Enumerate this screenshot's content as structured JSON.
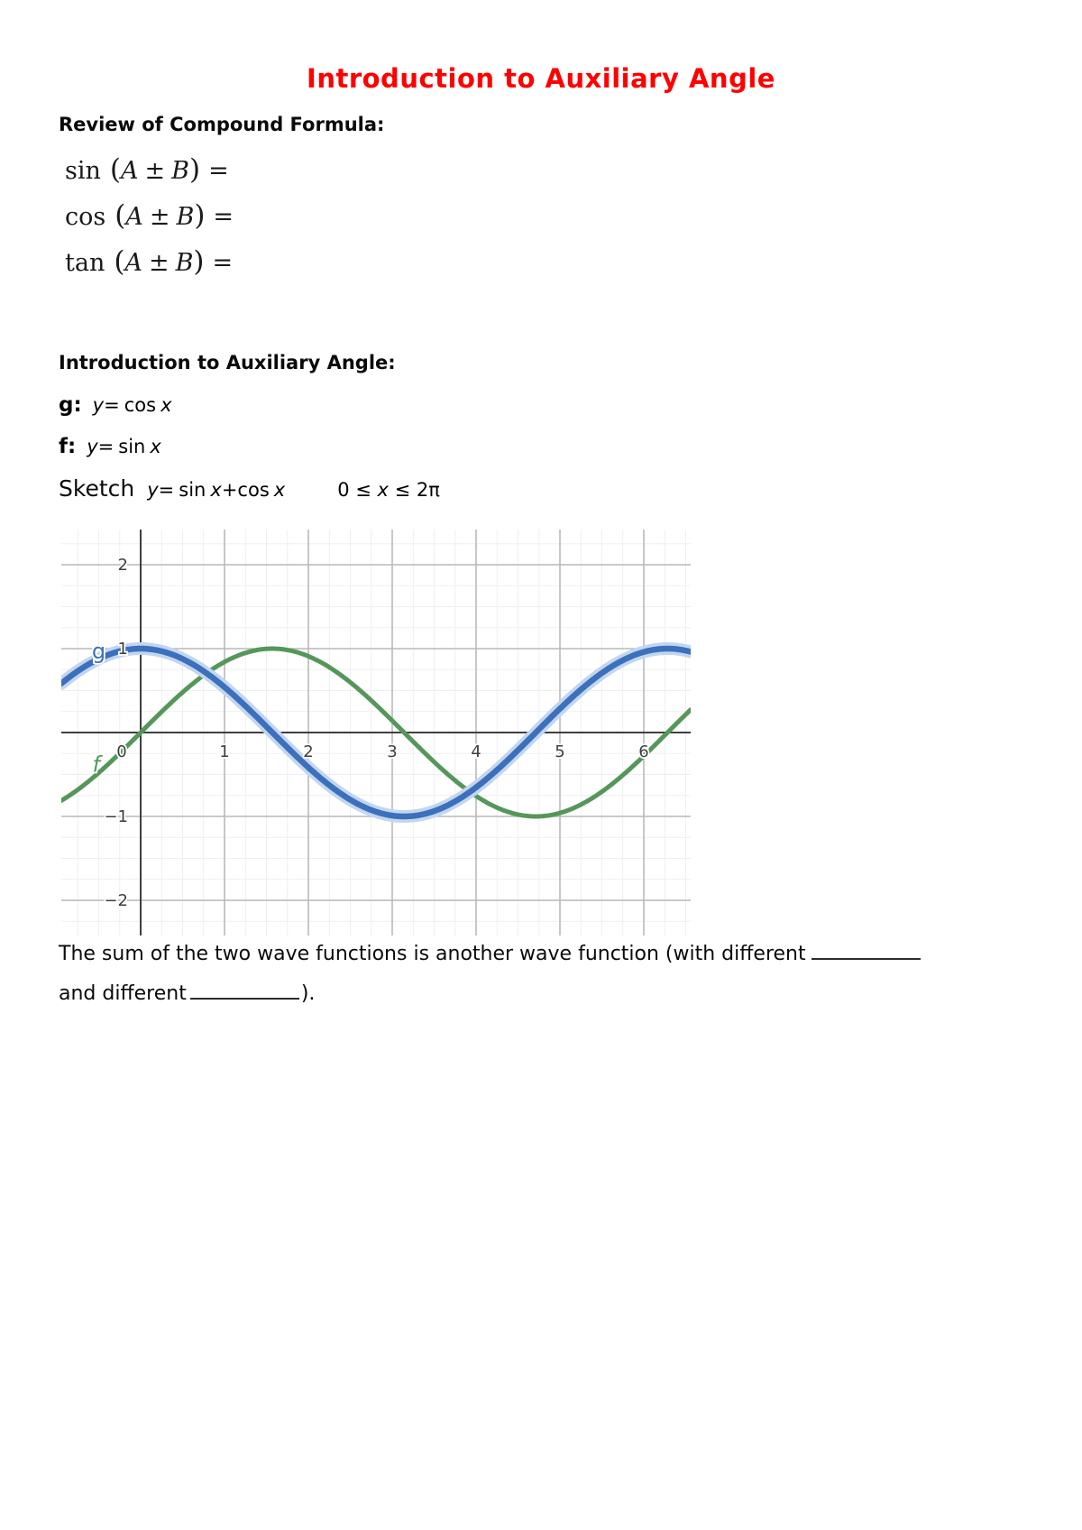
{
  "page": {
    "title": "Introduction to Auxiliary Angle",
    "title_color": "#ff0000"
  },
  "review": {
    "heading": "Review of Compound Formula:",
    "formulas": [
      {
        "fn": "sin",
        "open": "(",
        "a": "A",
        "pm": "±",
        "b": "B",
        "close": ")",
        "eq": "="
      },
      {
        "fn": "cos",
        "open": "(",
        "a": "A",
        "pm": "±",
        "b": "B",
        "close": ")",
        "eq": "="
      },
      {
        "fn": "tan",
        "open": "(",
        "a": "A",
        "pm": "±",
        "b": "B",
        "close": ")",
        "eq": "="
      }
    ]
  },
  "intro": {
    "heading": "Introduction to Auxiliary Angle:",
    "definitions": [
      {
        "label": "g:",
        "vy": "y",
        "eq": "=",
        "fn": "cos",
        "vx": "x"
      },
      {
        "label": "f:",
        "vy": "y",
        "eq": "=",
        "fn": "sin",
        "vx": "x"
      }
    ],
    "sketch": {
      "word": "Sketch",
      "vy": "y",
      "eq": "=",
      "fn1": "sin",
      "vx1": "x",
      "plus": "+",
      "fn2": "cos",
      "vx2": "x",
      "domain_start": "0 ≤",
      "domain_var": "x",
      "domain_end": "≤ 2π"
    }
  },
  "bottom": {
    "line1": "The sum of the two wave functions is another wave function (with different",
    "line2_start": "and different",
    "line2_end": ")."
  },
  "chart_data": {
    "type": "line",
    "title": "",
    "xlabel": "",
    "ylabel": "",
    "description": "Graphs of f: y = sin x (green) and g: y = cos x (blue, highlighted) over the visible window; student is to sketch y = sin x + cos x for 0 ≤ x ≤ 2π",
    "x_axis": {
      "visible_min": -0.95,
      "visible_max": 6.56,
      "ticks": [
        {
          "value": 0,
          "label": "0"
        },
        {
          "value": 1,
          "label": "1"
        },
        {
          "value": 2,
          "label": "2"
        },
        {
          "value": 3,
          "label": "3"
        },
        {
          "value": 4,
          "label": "4"
        },
        {
          "value": 5,
          "label": "5"
        },
        {
          "value": 6,
          "label": "6"
        }
      ]
    },
    "y_axis": {
      "visible_min": -2.42,
      "visible_max": 2.42,
      "ticks": [
        {
          "value": 2,
          "label": "2"
        },
        {
          "value": 1,
          "label": "1"
        },
        {
          "value": -1,
          "label": "−1"
        },
        {
          "value": -2,
          "label": "−2"
        }
      ]
    },
    "grid": {
      "on": true,
      "minor_step": 0.25,
      "major_step": 1,
      "minor_color": "#efefef",
      "major_color": "#b9b9b9",
      "axis_color": "#3f3f3f",
      "tick_label_color": "#3e3e3e"
    },
    "series": [
      {
        "name": "f",
        "expression": "y = sin x",
        "fn": "sin",
        "color": "#55975a",
        "width": 5,
        "halo": false,
        "label": "f",
        "label_italic": true,
        "label_x": -0.53,
        "label_y": -0.38,
        "sample_x": [
          0,
          0.5,
          1.0,
          1.5,
          2.0,
          2.5,
          3.0,
          3.5,
          4.0,
          4.5,
          5.0,
          5.5,
          6.0,
          6.28
        ],
        "sample_y": [
          0,
          0.48,
          0.84,
          1.0,
          0.91,
          0.6,
          0.14,
          -0.35,
          -0.76,
          -0.98,
          -0.96,
          -0.71,
          -0.28,
          0
        ]
      },
      {
        "name": "g",
        "expression": "y = cos x",
        "fn": "cos",
        "color": "#3b70bd",
        "width": 6.5,
        "halo": true,
        "halo_color": "#c3d6ee",
        "label": "g",
        "label_italic": false,
        "label_x": -0.5,
        "label_y": 0.97,
        "sample_x": [
          0,
          0.5,
          1.0,
          1.5,
          2.0,
          2.5,
          3.0,
          3.5,
          4.0,
          4.5,
          5.0,
          5.5,
          6.0,
          6.28
        ],
        "sample_y": [
          1,
          0.88,
          0.54,
          0.07,
          -0.42,
          -0.8,
          -0.99,
          -0.94,
          -0.65,
          -0.21,
          0.28,
          0.71,
          0.96,
          1
        ]
      }
    ]
  }
}
